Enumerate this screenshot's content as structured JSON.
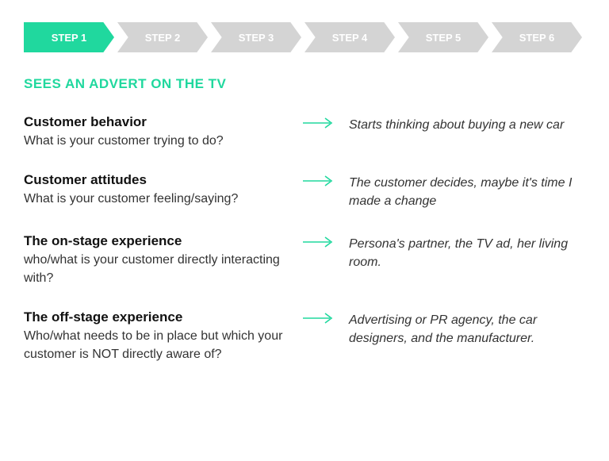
{
  "colors": {
    "active": "#20d89e",
    "inactive": "#d4d4d4",
    "title": "#20d89e",
    "arrow": "#20d89e",
    "text": "#222222",
    "heading": "#111111"
  },
  "steps": [
    {
      "label": "STEP 1",
      "active": true
    },
    {
      "label": "STEP 2",
      "active": false
    },
    {
      "label": "STEP 3",
      "active": false
    },
    {
      "label": "STEP 4",
      "active": false
    },
    {
      "label": "STEP 5",
      "active": false
    },
    {
      "label": "STEP 6",
      "active": false
    }
  ],
  "title": "SEES AN ADVERT ON THE TV",
  "rows": [
    {
      "heading": "Customer behavior",
      "question": "What is your customer trying to do?",
      "answer": "Starts thinking about buying a new car"
    },
    {
      "heading": "Customer attitudes",
      "question": "What is your customer feeling/saying?",
      "answer": "The customer decides, maybe it's time I made a change"
    },
    {
      "heading": "The on-stage experience",
      "question": "who/what is your customer directly interacting with?",
      "answer": "Persona's partner, the TV ad, her living room."
    },
    {
      "heading": "The off-stage experience",
      "question": "Who/what needs to be in place but which your customer is NOT directly aware of?",
      "answer": "Advertising or PR agency, the car designers, and the manufacturer."
    }
  ]
}
